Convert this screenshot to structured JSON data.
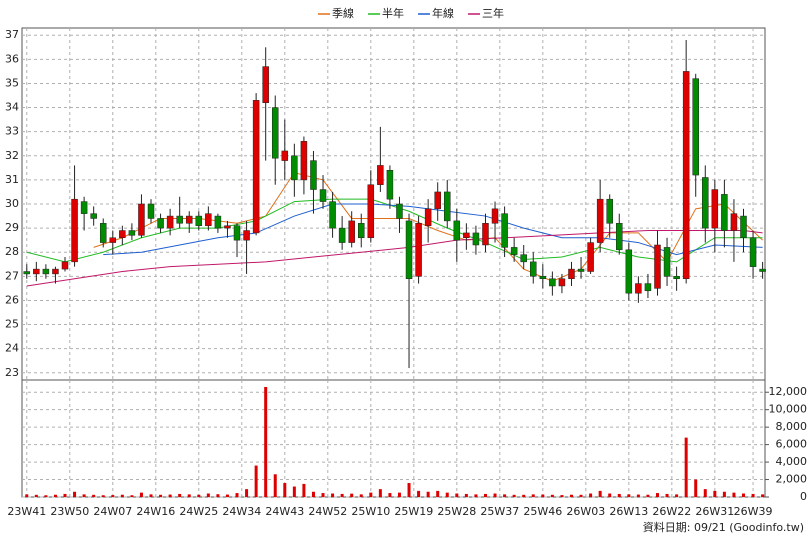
{
  "chart_data": {
    "type": "candlestick",
    "x": [
      0,
      2,
      4,
      6,
      8,
      10,
      12,
      14,
      16,
      18,
      20,
      22,
      24,
      26,
      28,
      30,
      32,
      34,
      36,
      38,
      40,
      42,
      44,
      46,
      48,
      50,
      52,
      54,
      56,
      58,
      60,
      62,
      64,
      66,
      68,
      70,
      72,
      74,
      76,
      78,
      80,
      82,
      84,
      86,
      88,
      90,
      92,
      94,
      96,
      98,
      100,
      102,
      104,
      106,
      108,
      110,
      112,
      114,
      116,
      118,
      120,
      122,
      124,
      126,
      128,
      130,
      132,
      134,
      136,
      138,
      140,
      142,
      144,
      146,
      148,
      150,
      152,
      154
    ],
    "open": [
      27.2,
      27.1,
      27.3,
      27.1,
      27.3,
      27.6,
      30.1,
      29.6,
      29.2,
      28.4,
      28.6,
      28.9,
      28.7,
      30.0,
      29.4,
      29.0,
      29.5,
      29.2,
      29.5,
      29.1,
      29.5,
      29.0,
      29.1,
      28.5,
      28.8,
      34.2,
      34.0,
      31.8,
      32.0,
      31.0,
      31.8,
      30.6,
      30.1,
      29.0,
      28.4,
      29.2,
      28.6,
      30.8,
      31.4,
      30.0,
      29.3,
      27.0,
      29.1,
      29.8,
      30.5,
      29.3,
      28.6,
      28.8,
      28.3,
      29.2,
      29.6,
      28.2,
      27.9,
      27.6,
      27.0,
      26.9,
      26.6,
      26.9,
      27.3,
      27.2,
      28.4,
      30.2,
      29.2,
      28.1,
      26.3,
      26.7,
      26.5,
      28.2,
      27.0,
      26.9,
      35.2,
      31.1,
      29.0,
      30.4,
      28.9,
      29.5,
      28.6,
      27.3
    ],
    "high": [
      27.5,
      27.6,
      27.5,
      27.4,
      27.8,
      31.6,
      30.3,
      29.9,
      29.4,
      28.9,
      29.1,
      29.2,
      30.4,
      30.2,
      29.6,
      29.8,
      30.3,
      29.7,
      29.7,
      29.9,
      29.6,
      29.3,
      29.2,
      29.3,
      34.6,
      36.5,
      34.5,
      33.5,
      32.5,
      32.8,
      32.2,
      31.2,
      30.5,
      29.5,
      29.7,
      29.6,
      31.4,
      33.2,
      31.6,
      30.3,
      29.6,
      29.5,
      30.2,
      30.9,
      31.0,
      29.8,
      29.2,
      29.1,
      29.6,
      30.1,
      29.9,
      28.6,
      28.3,
      28.0,
      27.5,
      27.2,
      27.1,
      27.6,
      27.8,
      28.6,
      31.0,
      30.4,
      29.6,
      28.4,
      27.0,
      27.1,
      28.9,
      28.6,
      27.4,
      36.8,
      35.4,
      31.6,
      31.0,
      31.0,
      30.2,
      29.8,
      28.9,
      27.6
    ],
    "low": [
      26.9,
      26.8,
      26.9,
      26.7,
      27.2,
      27.4,
      28.9,
      29.1,
      28.2,
      27.9,
      28.3,
      28.5,
      28.6,
      29.2,
      28.8,
      28.7,
      29.0,
      28.8,
      28.9,
      28.9,
      28.8,
      28.6,
      27.8,
      27.1,
      28.7,
      31.8,
      30.8,
      31.0,
      30.3,
      30.4,
      29.6,
      29.8,
      28.6,
      28.1,
      28.2,
      28.2,
      28.4,
      30.5,
      29.8,
      28.8,
      23.2,
      26.7,
      28.4,
      29.3,
      29.0,
      27.6,
      28.1,
      27.9,
      28.0,
      28.4,
      27.8,
      27.6,
      27.3,
      26.7,
      26.5,
      26.2,
      26.3,
      26.6,
      26.9,
      27.1,
      28.0,
      28.6,
      27.9,
      26.0,
      25.9,
      26.1,
      26.2,
      26.6,
      26.4,
      26.7,
      30.3,
      28.4,
      28.0,
      28.2,
      27.6,
      28.0,
      26.9,
      26.9
    ],
    "close": [
      27.1,
      27.3,
      27.1,
      27.3,
      27.6,
      30.2,
      29.6,
      29.4,
      28.4,
      28.6,
      28.9,
      28.7,
      30.0,
      29.4,
      29.0,
      29.5,
      29.2,
      29.5,
      29.1,
      29.6,
      29.0,
      29.1,
      28.5,
      28.9,
      34.3,
      35.7,
      31.9,
      32.2,
      31.0,
      32.6,
      30.6,
      30.1,
      29.0,
      28.4,
      29.3,
      28.6,
      30.8,
      31.6,
      30.2,
      29.4,
      26.9,
      29.2,
      29.8,
      30.5,
      29.3,
      28.5,
      28.8,
      28.3,
      29.2,
      29.8,
      28.2,
      27.9,
      27.6,
      27.0,
      26.9,
      26.6,
      26.9,
      27.3,
      27.2,
      28.4,
      30.2,
      29.2,
      28.1,
      26.3,
      26.7,
      26.4,
      28.3,
      27.0,
      26.9,
      35.5,
      31.2,
      29.0,
      30.6,
      28.9,
      29.6,
      28.6,
      27.4,
      27.2
    ],
    "up_color": "#dd0000",
    "down_color": "#008c00",
    "series": [
      {
        "name": "季線",
        "color": "#e0701a",
        "x": [
          14,
          20,
          28,
          36,
          44,
          50,
          56,
          62,
          68,
          74,
          80,
          86,
          92,
          98,
          104,
          110,
          116,
          122,
          128,
          134,
          140,
          146,
          154
        ],
        "values": [
          28.2,
          28.6,
          29.4,
          29.4,
          29.2,
          29.5,
          31.3,
          31.0,
          29.4,
          29.4,
          29.4,
          28.9,
          28.5,
          28.6,
          27.3,
          26.8,
          27.3,
          28.8,
          28.8,
          27.6,
          29.8,
          30.0,
          28.5
        ]
      },
      {
        "name": "半年",
        "color": "#22bb22",
        "x": [
          0,
          8,
          16,
          24,
          32,
          40,
          48,
          56,
          64,
          72,
          80,
          88,
          96,
          104,
          112,
          120,
          128,
          136,
          144,
          154
        ],
        "values": [
          28.0,
          27.6,
          28.0,
          28.6,
          29.0,
          29.0,
          29.3,
          30.1,
          30.2,
          30.2,
          29.7,
          29.0,
          28.4,
          27.7,
          27.8,
          28.2,
          27.8,
          27.6,
          28.6,
          28.6
        ]
      },
      {
        "name": "年線",
        "color": "#1f5fd0",
        "x": [
          16,
          24,
          32,
          40,
          48,
          56,
          64,
          72,
          80,
          88,
          96,
          104,
          112,
          120,
          128,
          136,
          144,
          154
        ],
        "values": [
          27.9,
          28.0,
          28.3,
          28.6,
          28.8,
          29.5,
          30.0,
          30.0,
          29.9,
          29.7,
          29.5,
          29.0,
          28.6,
          28.6,
          28.4,
          27.9,
          28.3,
          28.2
        ]
      },
      {
        "name": "三年",
        "color": "#c0186a",
        "x": [
          0,
          10,
          20,
          30,
          40,
          50,
          60,
          70,
          80,
          90,
          100,
          110,
          120,
          130,
          140,
          150,
          154
        ],
        "values": [
          26.6,
          26.9,
          27.2,
          27.4,
          27.5,
          27.6,
          27.8,
          28.0,
          28.2,
          28.5,
          28.6,
          28.7,
          28.8,
          28.9,
          28.9,
          28.9,
          28.8
        ]
      }
    ],
    "volume": {
      "color": "#dd0000",
      "values": [
        300,
        250,
        200,
        260,
        350,
        600,
        300,
        250,
        200,
        220,
        260,
        200,
        500,
        300,
        250,
        280,
        350,
        300,
        260,
        400,
        320,
        280,
        450,
        900,
        3600,
        12600,
        2600,
        1600,
        1200,
        1500,
        600,
        450,
        400,
        350,
        380,
        300,
        500,
        900,
        450,
        500,
        1600,
        700,
        600,
        700,
        500,
        400,
        350,
        300,
        350,
        400,
        300,
        250,
        250,
        300,
        280,
        250,
        220,
        260,
        250,
        400,
        700,
        400,
        350,
        300,
        280,
        260,
        450,
        350,
        300,
        6800,
        2000,
        900,
        700,
        600,
        500,
        400,
        350,
        300
      ],
      "y2lim": [
        0,
        13400
      ],
      "y2ticks": [
        0,
        {
          "value": 2000,
          "label": "2,000"
        },
        {
          "value": 4000,
          "label": "4,000"
        },
        {
          "value": 6000,
          "label": "6,000"
        },
        {
          "value": 8000,
          "label": "8,000"
        },
        {
          "value": 10000,
          "label": "10,000"
        },
        {
          "value": 12000,
          "label": "12,000"
        }
      ]
    },
    "xlim": [
      -1,
      154.5
    ],
    "xticks": [
      {
        "value": 0,
        "label": "23W41"
      },
      {
        "value": 9,
        "label": "23W50"
      },
      {
        "value": 18,
        "label": "24W07"
      },
      {
        "value": 27,
        "label": "24W16"
      },
      {
        "value": 36,
        "label": "24W25"
      },
      {
        "value": 45,
        "label": "24W34"
      },
      {
        "value": 54,
        "label": "24W43"
      },
      {
        "value": 63,
        "label": "24W52"
      },
      {
        "value": 72,
        "label": "25W10"
      },
      {
        "value": 81,
        "label": "25W19"
      },
      {
        "value": 90,
        "label": "25W28"
      },
      {
        "value": 99,
        "label": "25W37"
      },
      {
        "value": 108,
        "label": "25W46"
      },
      {
        "value": 117,
        "label": "26W03"
      },
      {
        "value": 126,
        "label": "26W13"
      },
      {
        "value": 135,
        "label": "26W22"
      },
      {
        "value": 144,
        "label": "26W31"
      },
      {
        "value": 152,
        "label": "26W39"
      }
    ],
    "ylim": [
      22.7,
      37.3
    ],
    "yticks": [
      23,
      24,
      25,
      26,
      27,
      28,
      29,
      30,
      31,
      32,
      33,
      34,
      35,
      36,
      37
    ],
    "grid": true,
    "footer": "資料日期: 09/21 (Goodinfo.tw)"
  }
}
